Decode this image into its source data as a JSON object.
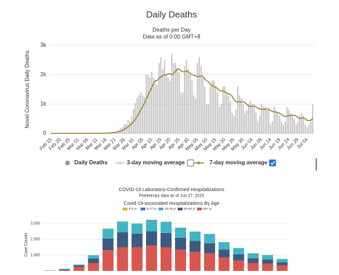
{
  "chart_data": [
    {
      "type": "bar",
      "title": "Daily Deaths",
      "subtitle": "Deaths per Day",
      "note": "Data as of 0:00 GMT+8",
      "y_label": "Novel Coronavirus Daily Deaths",
      "ylim": [
        0,
        3000
      ],
      "yticks": [
        0,
        {
          "value": 1000,
          "label": "1k"
        },
        {
          "value": 2000,
          "label": "2k"
        },
        {
          "value": 3000,
          "label": "3k"
        }
      ],
      "grid": true,
      "categories": [
        "Feb 15",
        null,
        null,
        null,
        null,
        "Feb 20",
        null,
        null,
        null,
        null,
        "Feb 25",
        null,
        null,
        null,
        null,
        "Mar 01",
        null,
        null,
        null,
        null,
        "Mar 06",
        null,
        null,
        null,
        null,
        "Mar 11",
        null,
        null,
        null,
        null,
        "Mar 16",
        null,
        null,
        null,
        null,
        "Mar 21",
        null,
        null,
        null,
        null,
        "Mar 26",
        null,
        null,
        null,
        null,
        "Mar 31",
        null,
        null,
        null,
        null,
        "Apr 05",
        null,
        null,
        null,
        null,
        "Apr 10",
        null,
        null,
        null,
        null,
        "Apr 15",
        null,
        null,
        null,
        null,
        "Apr 20",
        null,
        null,
        null,
        null,
        "Apr 25",
        null,
        null,
        null,
        null,
        "Apr 30",
        null,
        null,
        null,
        null,
        "May 05",
        null,
        null,
        null,
        null,
        "May 10",
        null,
        null,
        null,
        null,
        "May 15",
        null,
        null,
        null,
        null,
        "May 20",
        null,
        null,
        null,
        null,
        "May 25",
        null,
        null,
        null,
        null,
        "May 30",
        null,
        null,
        null,
        null,
        "Jun 04",
        null,
        null,
        null,
        null,
        "Jun 09",
        null,
        null,
        null,
        null,
        "Jun 14",
        null,
        null,
        null,
        null,
        "Jun 19",
        null,
        null,
        null,
        null,
        "Jun 24",
        null,
        null,
        null,
        null,
        "Jun 29",
        null,
        null,
        null,
        null,
        "Jul 04",
        null,
        null,
        null
      ],
      "series": [
        {
          "name": "Daily Deaths",
          "type": "bar",
          "color": "#bdbdbd",
          "legend_color": "#999999",
          "values": [
            0,
            0,
            0,
            0,
            0,
            0,
            0,
            0,
            0,
            0,
            0,
            0,
            0,
            0,
            1,
            0,
            1,
            4,
            1,
            2,
            1,
            3,
            4,
            3,
            4,
            8,
            3,
            7,
            10,
            9,
            18,
            23,
            31,
            42,
            57,
            58,
            70,
            116,
            165,
            213,
            304,
            310,
            469,
            418,
            572,
            824,
            1040,
            1200,
            1300,
            1400,
            1300,
            1250,
            2000,
            2000,
            1900,
            2100,
            1900,
            1700,
            1650,
            2400,
            2600,
            2200,
            2500,
            2000,
            1900,
            1800,
            2700,
            2400,
            2400,
            2200,
            2100,
            1400,
            1400,
            2300,
            2500,
            2200,
            2000,
            1800,
            1300,
            1200,
            2400,
            2600,
            2300,
            1900,
            1600,
            1000,
            1000,
            1600,
            1800,
            1800,
            1600,
            1400,
            900,
            1000,
            1600,
            1600,
            1400,
            1300,
            1100,
            700,
            600,
            800,
            1600,
            1300,
            1200,
            1000,
            700,
            800,
            1000,
            1100,
            1000,
            1000,
            700,
            400,
            600,
            1000,
            900,
            900,
            800,
            800,
            300,
            400,
            900,
            800,
            700,
            600,
            400,
            300,
            400,
            900,
            800,
            700,
            600,
            500,
            300,
            400,
            600,
            700,
            600,
            300,
            200,
            300,
            400,
            1000
          ]
        },
        {
          "name": "3-day moving average",
          "type": "line",
          "color": "#cccccc",
          "visible": false
        },
        {
          "name": "7-day moving average",
          "type": "line",
          "color": "#9c8530",
          "visible": true,
          "values": [
            0,
            0,
            0,
            0,
            0,
            0,
            0,
            0,
            0,
            0,
            0,
            0,
            0,
            0,
            0,
            0,
            0,
            1,
            1,
            1,
            2,
            2,
            2,
            3,
            3,
            4,
            4,
            5,
            6,
            7,
            9,
            12,
            16,
            21,
            28,
            36,
            46,
            61,
            81,
            106,
            140,
            174,
            221,
            268,
            323,
            400,
            480,
            580,
            680,
            800,
            910,
            1020,
            1170,
            1310,
            1430,
            1570,
            1700,
            1800,
            1800,
            1880,
            1930,
            1960,
            2000,
            2000,
            2030,
            2030,
            2000,
            2050,
            2120,
            2200,
            2200,
            2130,
            2100,
            2100,
            2130,
            2100,
            2050,
            2000,
            1990,
            1950,
            1930,
            1950,
            1960,
            1950,
            1850,
            1800,
            1760,
            1680,
            1620,
            1600,
            1570,
            1530,
            1460,
            1450,
            1450,
            1420,
            1380,
            1350,
            1330,
            1260,
            1150,
            1080,
            1080,
            1070,
            1080,
            1080,
            1050,
            990,
            940,
            920,
            920,
            930,
            910,
            860,
            830,
            830,
            820,
            820,
            830,
            830,
            780,
            740,
            740,
            720,
            710,
            690,
            640,
            600,
            570,
            590,
            600,
            610,
            620,
            620,
            590,
            540,
            500,
            520,
            530,
            500,
            440,
            440,
            440,
            520
          ]
        }
      ]
    },
    {
      "type": "bar",
      "stacked": true,
      "title": "COVID-19 Laboratory-Confirmed Hospitalizations",
      "subtitle": "Preliminary data as of Jun 27, 2020",
      "note": "Covid-19-associated Hospitalizations By Age",
      "y_label": "Case Counts",
      "ylim": [
        0,
        3300
      ],
      "yticks": [
        {
          "value": 1000,
          "label": "1,000"
        },
        {
          "value": 2000,
          "label": "2,000"
        },
        {
          "value": 3000,
          "label": "3,000"
        }
      ],
      "grid": true,
      "categories": [
        null,
        null,
        null,
        null,
        null,
        null,
        null,
        null,
        null,
        null,
        null,
        null,
        null,
        null,
        null,
        null,
        null
      ],
      "series": [
        {
          "name": "0-4 yr",
          "color": "#d4b93c",
          "values": [
            1,
            4,
            6,
            10,
            15,
            15,
            15,
            18,
            16,
            14,
            13,
            12,
            10,
            10,
            9,
            8,
            7
          ]
        },
        {
          "name": "5-17 yr",
          "color": "#3b7dc4",
          "values": [
            1,
            3,
            3,
            8,
            15,
            18,
            20,
            22,
            20,
            18,
            18,
            16,
            14,
            12,
            10,
            10,
            8
          ]
        },
        {
          "name": "18-49 yr",
          "color": "#3fb6c6",
          "values": [
            5,
            30,
            50,
            200,
            600,
            650,
            620,
            700,
            680,
            600,
            560,
            560,
            450,
            380,
            300,
            260,
            200
          ]
        },
        {
          "name": "50-64 yr",
          "color": "#3c5b80",
          "values": [
            8,
            40,
            100,
            280,
            750,
            950,
            850,
            900,
            900,
            750,
            700,
            650,
            500,
            400,
            300,
            280,
            200
          ]
        },
        {
          "name": "65+ yr",
          "color": "#d9564f",
          "values": [
            15,
            60,
            250,
            500,
            1300,
            1500,
            1500,
            1600,
            1500,
            1350,
            1200,
            1100,
            850,
            650,
            500,
            450,
            350
          ]
        }
      ]
    }
  ]
}
